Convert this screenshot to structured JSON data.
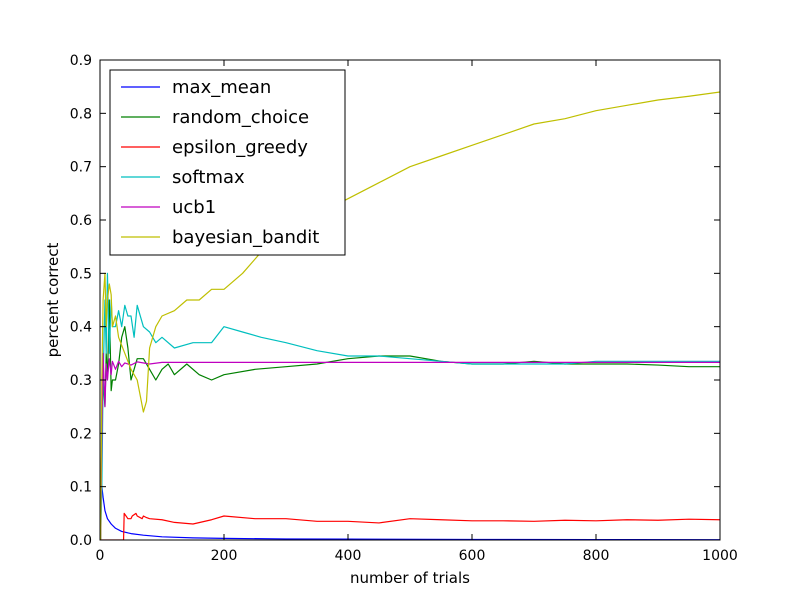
{
  "chart_data": {
    "type": "line",
    "title": "",
    "xlabel": "number of trials",
    "ylabel": "percent correct",
    "xlim": [
      0,
      1000
    ],
    "ylim": [
      0,
      0.9
    ],
    "xticks": [
      0,
      200,
      400,
      600,
      800,
      1000
    ],
    "xtick_labels": [
      "0",
      "200",
      "400",
      "600",
      "800",
      "1000"
    ],
    "yticks": [
      0.0,
      0.1,
      0.2,
      0.3,
      0.4,
      0.5,
      0.6,
      0.7,
      0.8,
      0.9
    ],
    "ytick_labels": [
      "0.0",
      "0.1",
      "0.2",
      "0.3",
      "0.4",
      "0.5",
      "0.6",
      "0.7",
      "0.8",
      "0.9"
    ],
    "grid": false,
    "legend_position": "top-left",
    "series": [
      {
        "name": "max_mean",
        "color": "#0000ff",
        "x": [
          1,
          3,
          5,
          8,
          12,
          18,
          25,
          35,
          50,
          70,
          100,
          150,
          200,
          300,
          400,
          600,
          800,
          1000
        ],
        "y": [
          0.12,
          0.1,
          0.08,
          0.055,
          0.04,
          0.03,
          0.022,
          0.016,
          0.012,
          0.009,
          0.006,
          0.004,
          0.003,
          0.002,
          0.0016,
          0.001,
          0.0008,
          0.0006
        ]
      },
      {
        "name": "random_choice",
        "color": "#008000",
        "x": [
          1,
          3,
          5,
          8,
          10,
          12,
          15,
          18,
          20,
          25,
          30,
          35,
          40,
          45,
          50,
          55,
          60,
          70,
          80,
          90,
          100,
          110,
          120,
          140,
          160,
          180,
          200,
          250,
          300,
          350,
          400,
          450,
          500,
          550,
          600,
          650,
          700,
          750,
          800,
          850,
          900,
          950,
          1000
        ],
        "y": [
          0.0,
          0.2,
          0.3,
          0.25,
          0.35,
          0.3,
          0.45,
          0.28,
          0.3,
          0.3,
          0.33,
          0.38,
          0.4,
          0.36,
          0.3,
          0.32,
          0.34,
          0.34,
          0.32,
          0.3,
          0.32,
          0.33,
          0.31,
          0.33,
          0.31,
          0.3,
          0.31,
          0.32,
          0.325,
          0.33,
          0.34,
          0.345,
          0.345,
          0.335,
          0.33,
          0.33,
          0.335,
          0.33,
          0.33,
          0.33,
          0.328,
          0.325,
          0.325
        ]
      },
      {
        "name": "epsilon_greedy",
        "color": "#ff0000",
        "x": [
          1,
          38,
          39,
          45,
          50,
          52,
          58,
          60,
          68,
          70,
          75,
          80,
          100,
          120,
          150,
          180,
          200,
          250,
          300,
          350,
          400,
          450,
          500,
          550,
          600,
          650,
          700,
          750,
          800,
          850,
          900,
          950,
          1000
        ],
        "y": [
          0.0,
          0.0,
          0.05,
          0.04,
          0.04,
          0.045,
          0.05,
          0.045,
          0.04,
          0.045,
          0.042,
          0.04,
          0.038,
          0.033,
          0.03,
          0.038,
          0.045,
          0.04,
          0.04,
          0.035,
          0.035,
          0.032,
          0.04,
          0.038,
          0.036,
          0.036,
          0.035,
          0.037,
          0.036,
          0.038,
          0.037,
          0.039,
          0.038
        ]
      },
      {
        "name": "softmax",
        "color": "#00bfbf",
        "x": [
          1,
          3,
          5,
          8,
          10,
          12,
          15,
          18,
          20,
          25,
          30,
          35,
          40,
          45,
          50,
          55,
          60,
          70,
          80,
          90,
          100,
          120,
          150,
          180,
          200,
          230,
          260,
          300,
          350,
          400,
          450,
          500,
          550,
          600,
          650,
          700,
          750,
          800,
          850,
          900,
          950,
          1000
        ],
        "y": [
          0.0,
          0.1,
          0.3,
          0.45,
          0.35,
          0.5,
          0.35,
          0.45,
          0.4,
          0.4,
          0.43,
          0.4,
          0.44,
          0.42,
          0.42,
          0.38,
          0.44,
          0.4,
          0.39,
          0.37,
          0.38,
          0.36,
          0.37,
          0.37,
          0.4,
          0.39,
          0.38,
          0.37,
          0.355,
          0.345,
          0.345,
          0.34,
          0.335,
          0.33,
          0.33,
          0.33,
          0.33,
          0.335,
          0.335,
          0.335,
          0.335,
          0.335
        ]
      },
      {
        "name": "ucb1",
        "color": "#bf00bf",
        "x": [
          1,
          3,
          5,
          8,
          10,
          12,
          15,
          18,
          20,
          25,
          30,
          35,
          40,
          50,
          60,
          80,
          100,
          150,
          200,
          300,
          400,
          500,
          600,
          700,
          800,
          900,
          1000
        ],
        "y": [
          0.0,
          0.2,
          0.35,
          0.25,
          0.33,
          0.3,
          0.34,
          0.31,
          0.335,
          0.32,
          0.335,
          0.325,
          0.332,
          0.328,
          0.334,
          0.33,
          0.333,
          0.333,
          0.333,
          0.333,
          0.333,
          0.333,
          0.333,
          0.333,
          0.333,
          0.333,
          0.333
        ]
      },
      {
        "name": "bayesian_bandit",
        "color": "#bfbf00",
        "x": [
          1,
          3,
          5,
          8,
          10,
          12,
          15,
          18,
          20,
          25,
          30,
          40,
          50,
          60,
          70,
          75,
          80,
          90,
          100,
          120,
          140,
          160,
          180,
          200,
          230,
          260,
          300,
          350,
          400,
          450,
          500,
          550,
          600,
          650,
          700,
          750,
          800,
          850,
          900,
          950,
          1000
        ],
        "y": [
          0.0,
          0.3,
          0.45,
          0.5,
          0.4,
          0.45,
          0.48,
          0.46,
          0.4,
          0.42,
          0.38,
          0.35,
          0.32,
          0.3,
          0.24,
          0.26,
          0.36,
          0.4,
          0.42,
          0.43,
          0.45,
          0.45,
          0.47,
          0.47,
          0.5,
          0.54,
          0.57,
          0.61,
          0.64,
          0.67,
          0.7,
          0.72,
          0.74,
          0.76,
          0.78,
          0.79,
          0.805,
          0.815,
          0.825,
          0.832,
          0.84
        ]
      }
    ]
  }
}
